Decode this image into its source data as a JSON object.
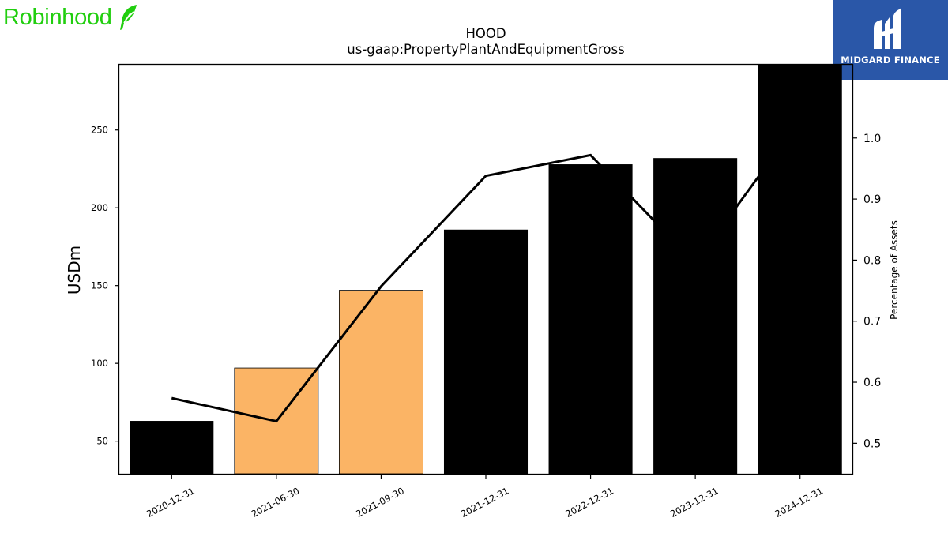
{
  "brand": {
    "name": "Robinhood",
    "logo_icon": "feather-icon",
    "accent": "#21ce0f"
  },
  "badge": {
    "name": "MIDGARD FINANCE",
    "background": "#2a57a8"
  },
  "chart_data": {
    "type": "bar",
    "title": "HOOD",
    "subtitle": "us-gaap:PropertyPlantAndEquipmentGross",
    "ylabel": "USDm",
    "y2label": "Percentage of Assets",
    "categories": [
      "2020-12-31",
      "2021-06-30",
      "2021-09-30",
      "2021-12-31",
      "2022-12-31",
      "2023-12-31",
      "2024-12-31"
    ],
    "series": [
      {
        "values": [
          63,
          97,
          147,
          186,
          228,
          232,
          296
        ],
        "colors": [
          "#000000",
          "#fbb465",
          "#fbb465",
          "#000000",
          "#000000",
          "#000000",
          "#000000"
        ]
      },
      {
        "axis": "right",
        "type": "line",
        "values": [
          0.574,
          0.536,
          0.757,
          0.938,
          0.972,
          0.795,
          1.03
        ],
        "color": "#000000"
      }
    ],
    "ylim": [
      29,
      292
    ],
    "y2lim": [
      0.45,
      1.12
    ],
    "yticks": [
      50,
      100,
      150,
      200,
      250
    ],
    "y2ticks": [
      0.5,
      0.6,
      0.7,
      0.8,
      0.9,
      1.0
    ],
    "grid": false
  }
}
